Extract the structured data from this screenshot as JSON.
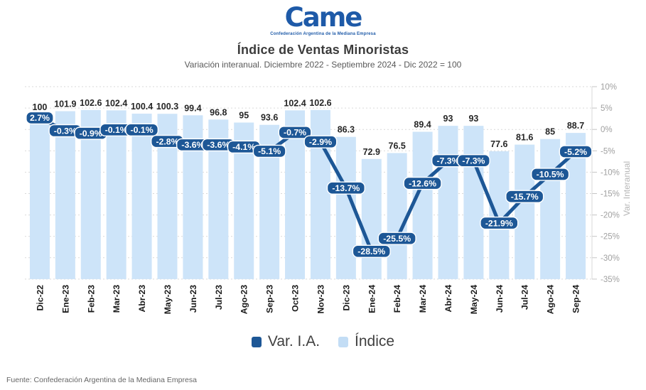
{
  "header": {
    "logo": {
      "text": "Came",
      "subtext": "Confederación Argentina de la Mediana Empresa"
    }
  },
  "chart_data": {
    "type": "bar+line",
    "title": "Índice de Ventas Minoristas",
    "subtitle": "Variación interanual. Diciembre 2022 - Septiembre 2024 - Dic 2022 = 100",
    "categories": [
      "Dic-22",
      "Ene-23",
      "Feb-23",
      "Mar-23",
      "Abr-23",
      "May-23",
      "Jun-23",
      "Jul-23",
      "Ago-23",
      "Sep-23",
      "Oct-23",
      "Nov-23",
      "Dic-23",
      "Ene-24",
      "Feb-24",
      "Mar-24",
      "Abr-24",
      "May-24",
      "Jun-24",
      "Jul-24",
      "Ago-24",
      "Sep-24"
    ],
    "series": [
      {
        "name": "Índice",
        "type": "bar",
        "color": "#cde4f9",
        "values": [
          100,
          101.9,
          102.6,
          102.4,
          100.4,
          100.3,
          99.4,
          96.8,
          95,
          93.6,
          102.4,
          102.6,
          86.3,
          72.9,
          76.5,
          89.4,
          93,
          93,
          77.6,
          81.6,
          85,
          88.7
        ]
      },
      {
        "name": "Var. I.A.",
        "type": "line",
        "color": "#1d5796",
        "values": [
          2.7,
          -0.3,
          -0.9,
          -0.1,
          -0.1,
          -2.8,
          -3.6,
          -3.6,
          -4.1,
          -5.1,
          -0.7,
          -2.9,
          -13.7,
          -28.5,
          -25.5,
          -12.6,
          -7.3,
          -7.3,
          -21.9,
          -15.7,
          -10.5,
          -5.2
        ]
      }
    ],
    "right_axis": {
      "label": "Var. Interanual",
      "ticks": [
        "10%",
        "5%",
        "0%",
        "-5%",
        "-10%",
        "-15%",
        "-20%",
        "-25%",
        "-30%",
        "-35%"
      ],
      "max": 10,
      "min": -35,
      "grid": "dotted horizontal"
    },
    "legend": [
      {
        "label": "Var. I.A.",
        "color": "#1d5796"
      },
      {
        "label": "Índice",
        "color": "#c3ddf5"
      }
    ],
    "colors": {
      "bar_label": "#262626",
      "month_label": "#1a1a1a",
      "axis_text": "#a0a0a0",
      "gridline": "#d9d9d9",
      "pill_text": "#ffffff"
    }
  },
  "footer": {
    "source": "Fuente: Confederación Argentina de la Mediana Empresa"
  }
}
